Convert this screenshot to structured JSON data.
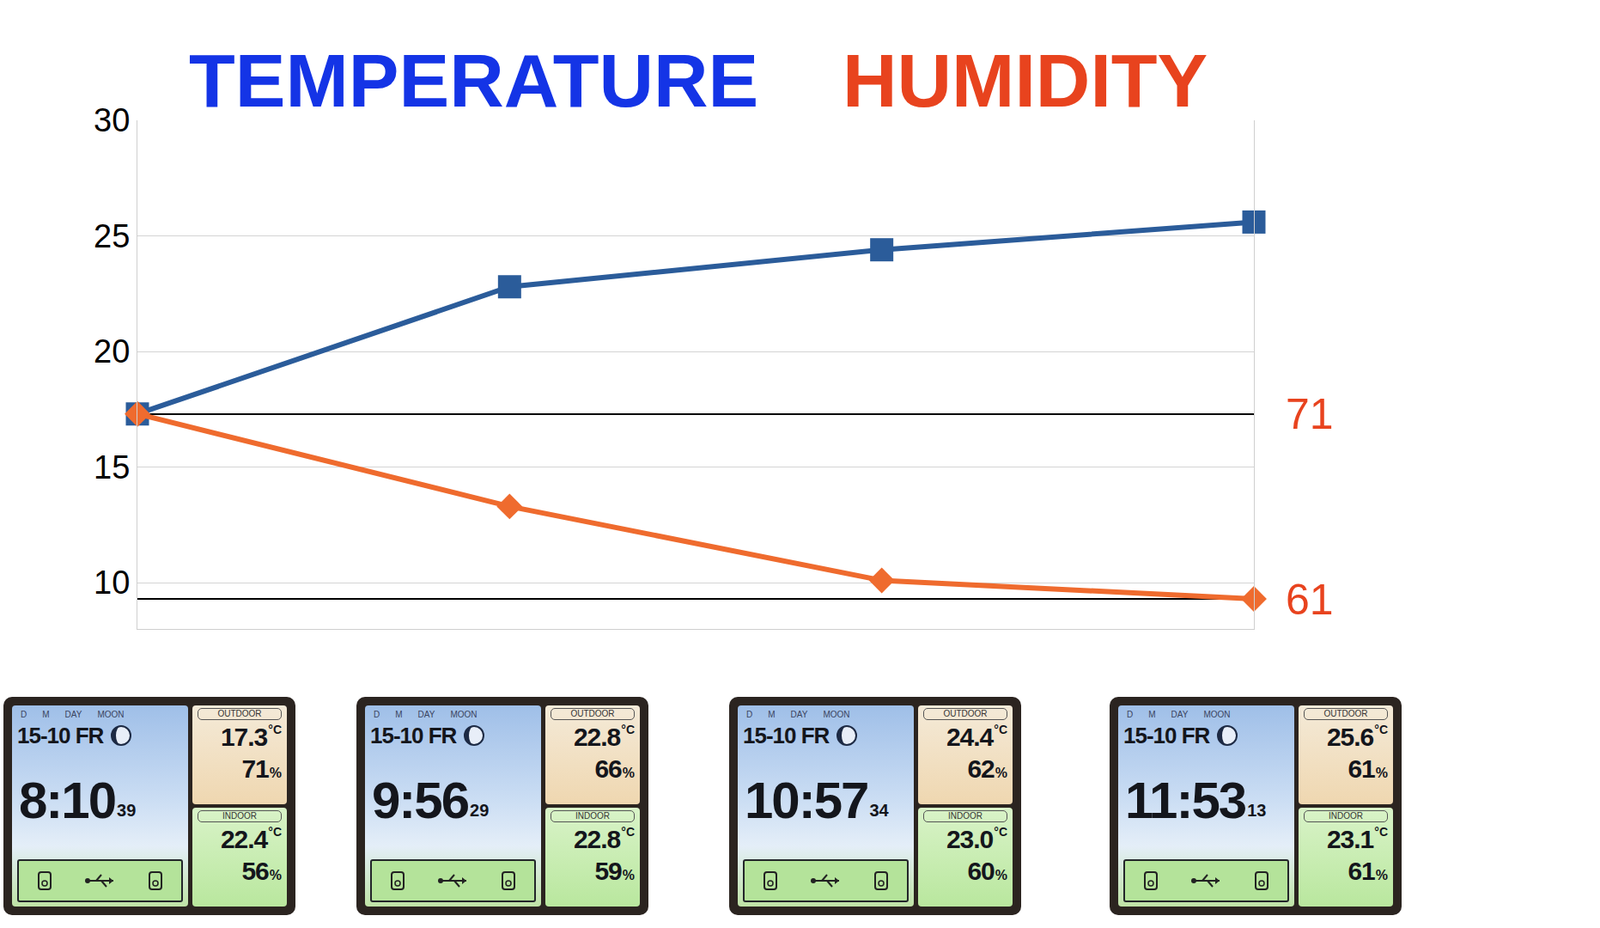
{
  "chart_data": {
    "type": "line",
    "categories": [
      null,
      null,
      null,
      null
    ],
    "series": [
      {
        "name": "TEMPERATURE",
        "color": "#2b5c9a",
        "marker": "square",
        "line_style": "solid",
        "values": [
          17.3,
          22.8,
          24.4,
          25.6
        ]
      },
      {
        "name": "HUMIDITY",
        "color": "#ef6b2e",
        "marker": "diamond",
        "line_style": "solid",
        "axis": "y2",
        "values": [
          71,
          66,
          62,
          61
        ]
      }
    ],
    "ylim": [
      8,
      30
    ],
    "yticks": [
      10,
      15,
      20,
      25,
      30
    ],
    "y2lim": [
      59.375,
      86.875
    ],
    "y2ticks": [
      61,
      71
    ],
    "grid": true
  },
  "display_labels": {
    "d": "D",
    "m": "M",
    "day": "DAY",
    "moon": "MOON",
    "outdoor": "OUTDOOR",
    "indoor": "INDOOR",
    "temp_unit": "°C",
    "humidity_unit": "%"
  },
  "displays": [
    {
      "date": "15-10",
      "weekday": "FR",
      "time": "8:10",
      "seconds": "39",
      "outdoor_temp": "17.3",
      "outdoor_humidity": "71",
      "indoor_temp": "22.4",
      "indoor_humidity": "56"
    },
    {
      "date": "15-10",
      "weekday": "FR",
      "time": "9:56",
      "seconds": "29",
      "outdoor_temp": "22.8",
      "outdoor_humidity": "66",
      "indoor_temp": "22.8",
      "indoor_humidity": "59"
    },
    {
      "date": "15-10",
      "weekday": "FR",
      "time": "10:57",
      "seconds": "34",
      "outdoor_temp": "24.4",
      "outdoor_humidity": "62",
      "indoor_temp": "23.0",
      "indoor_humidity": "60"
    },
    {
      "date": "15-10",
      "weekday": "FR",
      "time": "11:53",
      "seconds": "13",
      "outdoor_temp": "25.6",
      "outdoor_humidity": "61",
      "indoor_temp": "23.1",
      "indoor_humidity": "61"
    }
  ]
}
